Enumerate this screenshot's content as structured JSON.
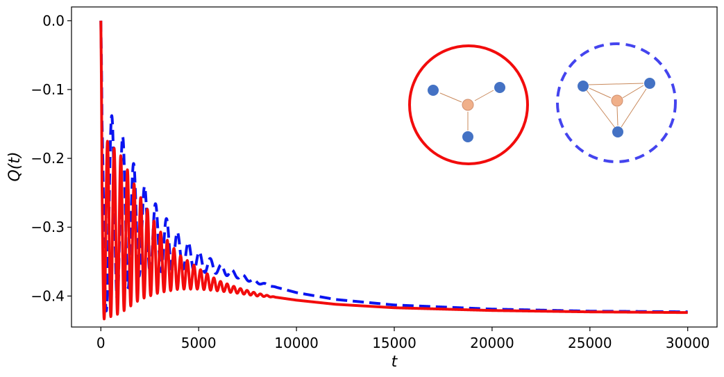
{
  "chart_data": {
    "type": "line",
    "title": "",
    "xlabel": "t",
    "ylabel": "Q(t)",
    "xlim": [
      -1500,
      31500
    ],
    "ylim": [
      -0.445,
      0.02
    ],
    "xticks": [
      0,
      5000,
      10000,
      15000,
      20000,
      25000,
      30000
    ],
    "xtick_labels": [
      "0",
      "5000",
      "10000",
      "15000",
      "20000",
      "25000",
      "30000"
    ],
    "yticks": [
      0.0,
      -0.1,
      -0.2,
      -0.3,
      -0.4
    ],
    "ytick_labels": [
      "0.0",
      "−0.1",
      "−0.2",
      "−0.3",
      "−0.4"
    ],
    "grid": false,
    "series": [
      {
        "style": "dashed",
        "color": "#0a14f0",
        "t_end": 30000,
        "asymptote": -0.423,
        "start_value": 0.0,
        "first_peak": -0.11,
        "oscillation_period": 560,
        "oscillation_envelope": [
          [
            0,
            0.32
          ],
          [
            1000,
            0.24
          ],
          [
            2000,
            0.14
          ],
          [
            3000,
            0.09
          ],
          [
            4000,
            0.05
          ],
          [
            5000,
            0.03
          ],
          [
            6000,
            0.015
          ],
          [
            7000,
            0.008
          ],
          [
            9000,
            0.0
          ]
        ],
        "mean_curve": [
          [
            0,
            -0.27
          ],
          [
            1000,
            -0.28
          ],
          [
            2000,
            -0.3
          ],
          [
            3000,
            -0.32
          ],
          [
            4000,
            -0.335
          ],
          [
            5000,
            -0.35
          ],
          [
            6000,
            -0.36
          ],
          [
            7000,
            -0.37
          ],
          [
            8000,
            -0.38
          ],
          [
            10000,
            -0.395
          ],
          [
            12000,
            -0.405
          ],
          [
            15000,
            -0.413
          ],
          [
            20000,
            -0.419
          ],
          [
            25000,
            -0.422
          ],
          [
            30000,
            -0.423
          ]
        ]
      },
      {
        "style": "solid",
        "color": "#f20c0c",
        "t_end": 30000,
        "asymptote": -0.424,
        "start_value": 0.0,
        "first_trough": -0.426,
        "oscillation_period": 340,
        "oscillation_envelope": [
          [
            0,
            0.27
          ],
          [
            1000,
            0.23
          ],
          [
            2000,
            0.15
          ],
          [
            3000,
            0.09
          ],
          [
            4000,
            0.05
          ],
          [
            5000,
            0.03
          ],
          [
            6000,
            0.015
          ],
          [
            7000,
            0.008
          ],
          [
            9000,
            0.0
          ]
        ],
        "mean_curve": [
          [
            0,
            -0.3
          ],
          [
            1000,
            -0.31
          ],
          [
            2000,
            -0.33
          ],
          [
            3000,
            -0.35
          ],
          [
            4000,
            -0.365
          ],
          [
            5000,
            -0.375
          ],
          [
            6000,
            -0.385
          ],
          [
            7000,
            -0.392
          ],
          [
            8000,
            -0.398
          ],
          [
            10000,
            -0.406
          ],
          [
            12000,
            -0.412
          ],
          [
            15000,
            -0.417
          ],
          [
            20000,
            -0.421
          ],
          [
            25000,
            -0.423
          ],
          [
            30000,
            -0.424
          ]
        ]
      }
    ],
    "insets": [
      {
        "border": "solid",
        "border_color": "#f20c0c",
        "graph": "star",
        "center_node_color": "#f0b08a",
        "leaf_node_color": "#4472c4",
        "edge_color": "#c8885a"
      },
      {
        "border": "dashed",
        "border_color": "#4444ee",
        "graph": "star-plus-triangle",
        "center_node_color": "#f0b08a",
        "leaf_node_color": "#4472c4",
        "edge_color": "#c8885a"
      }
    ]
  }
}
